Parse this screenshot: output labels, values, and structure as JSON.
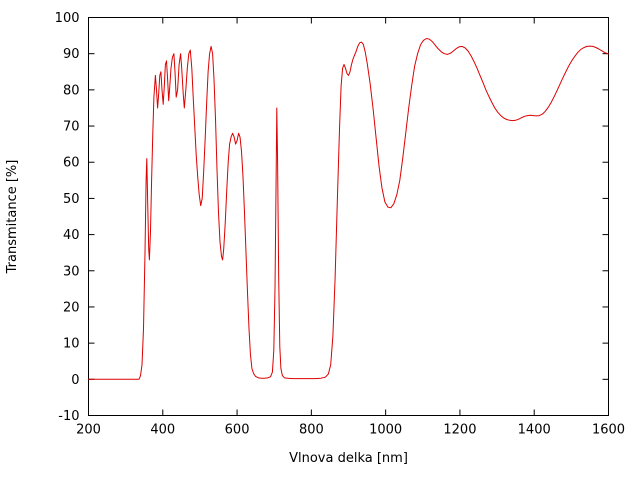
{
  "chart_data": {
    "type": "line",
    "title": "",
    "xlabel": "Vlnova delka [nm]",
    "ylabel": "Transmitance [%]",
    "xlim": [
      200,
      1600
    ],
    "ylim": [
      -10,
      100
    ],
    "x_ticks": [
      200,
      400,
      600,
      800,
      1000,
      1200,
      1400,
      1600
    ],
    "y_ticks": [
      -10,
      0,
      10,
      20,
      30,
      40,
      50,
      60,
      70,
      80,
      90,
      100
    ],
    "grid": false,
    "legend": "none",
    "line_color": "#dd0000",
    "frame_color": "#000000",
    "background_color": "#ffffff",
    "points": [
      [
        200,
        0
      ],
      [
        250,
        0
      ],
      [
        300,
        0
      ],
      [
        320,
        0
      ],
      [
        330,
        0
      ],
      [
        336,
        0
      ],
      [
        340,
        1
      ],
      [
        344,
        4
      ],
      [
        348,
        14
      ],
      [
        352,
        35
      ],
      [
        355,
        55
      ],
      [
        357,
        61
      ],
      [
        359,
        50
      ],
      [
        362,
        36
      ],
      [
        364,
        33
      ],
      [
        367,
        41
      ],
      [
        370,
        55
      ],
      [
        373,
        68
      ],
      [
        376,
        78
      ],
      [
        380,
        84
      ],
      [
        383,
        80
      ],
      [
        386,
        75
      ],
      [
        389,
        79
      ],
      [
        392,
        84
      ],
      [
        395,
        85
      ],
      [
        398,
        80
      ],
      [
        401,
        76
      ],
      [
        404,
        81
      ],
      [
        407,
        87
      ],
      [
        410,
        88
      ],
      [
        413,
        83
      ],
      [
        416,
        77
      ],
      [
        419,
        81
      ],
      [
        422,
        86
      ],
      [
        426,
        89
      ],
      [
        430,
        90
      ],
      [
        433,
        85
      ],
      [
        436,
        78
      ],
      [
        440,
        80
      ],
      [
        444,
        87
      ],
      [
        448,
        90
      ],
      [
        451,
        86
      ],
      [
        455,
        79
      ],
      [
        458,
        75
      ],
      [
        462,
        80
      ],
      [
        466,
        86
      ],
      [
        470,
        90
      ],
      [
        474,
        91
      ],
      [
        478,
        86
      ],
      [
        482,
        78
      ],
      [
        486,
        70
      ],
      [
        490,
        62
      ],
      [
        494,
        56
      ],
      [
        498,
        51
      ],
      [
        502,
        48
      ],
      [
        506,
        50
      ],
      [
        510,
        57
      ],
      [
        514,
        66
      ],
      [
        518,
        76
      ],
      [
        522,
        85
      ],
      [
        526,
        90
      ],
      [
        530,
        92
      ],
      [
        534,
        90
      ],
      [
        538,
        83
      ],
      [
        542,
        72
      ],
      [
        546,
        58
      ],
      [
        550,
        46
      ],
      [
        554,
        38
      ],
      [
        558,
        34
      ],
      [
        561,
        33
      ],
      [
        564,
        36
      ],
      [
        568,
        43
      ],
      [
        572,
        52
      ],
      [
        576,
        60
      ],
      [
        580,
        65
      ],
      [
        584,
        67
      ],
      [
        588,
        68
      ],
      [
        592,
        67
      ],
      [
        596,
        65
      ],
      [
        600,
        66
      ],
      [
        604,
        68
      ],
      [
        608,
        67
      ],
      [
        612,
        63
      ],
      [
        616,
        56
      ],
      [
        620,
        46
      ],
      [
        624,
        35
      ],
      [
        628,
        24
      ],
      [
        632,
        14
      ],
      [
        636,
        7
      ],
      [
        640,
        3
      ],
      [
        645,
        1.5
      ],
      [
        650,
        0.8
      ],
      [
        658,
        0.4
      ],
      [
        666,
        0.3
      ],
      [
        674,
        0.3
      ],
      [
        682,
        0.4
      ],
      [
        690,
        0.7
      ],
      [
        695,
        2
      ],
      [
        699,
        8
      ],
      [
        702,
        25
      ],
      [
        705,
        55
      ],
      [
        707,
        75
      ],
      [
        709,
        60
      ],
      [
        712,
        28
      ],
      [
        715,
        9
      ],
      [
        718,
        3
      ],
      [
        722,
        1
      ],
      [
        728,
        0.4
      ],
      [
        736,
        0.3
      ],
      [
        750,
        0.2
      ],
      [
        770,
        0.2
      ],
      [
        790,
        0.2
      ],
      [
        810,
        0.2
      ],
      [
        826,
        0.3
      ],
      [
        838,
        0.6
      ],
      [
        846,
        1.5
      ],
      [
        852,
        4
      ],
      [
        858,
        12
      ],
      [
        864,
        28
      ],
      [
        870,
        50
      ],
      [
        876,
        70
      ],
      [
        880,
        81
      ],
      [
        884,
        86
      ],
      [
        888,
        87
      ],
      [
        892,
        86
      ],
      [
        896,
        84.5
      ],
      [
        900,
        84
      ],
      [
        904,
        85
      ],
      [
        908,
        87
      ],
      [
        912,
        88.5
      ],
      [
        916,
        89.5
      ],
      [
        920,
        90.5
      ],
      [
        925,
        92
      ],
      [
        930,
        93
      ],
      [
        935,
        93.2
      ],
      [
        940,
        92.5
      ],
      [
        945,
        90.5
      ],
      [
        950,
        87.5
      ],
      [
        958,
        82
      ],
      [
        966,
        75
      ],
      [
        974,
        67
      ],
      [
        982,
        59
      ],
      [
        990,
        53
      ],
      [
        998,
        49
      ],
      [
        1006,
        47.6
      ],
      [
        1014,
        47.4
      ],
      [
        1022,
        48.5
      ],
      [
        1030,
        51
      ],
      [
        1038,
        55
      ],
      [
        1046,
        61
      ],
      [
        1054,
        68
      ],
      [
        1062,
        75
      ],
      [
        1070,
        81
      ],
      [
        1078,
        86.5
      ],
      [
        1086,
        90
      ],
      [
        1094,
        92.5
      ],
      [
        1102,
        93.7
      ],
      [
        1110,
        94.2
      ],
      [
        1118,
        94
      ],
      [
        1126,
        93.3
      ],
      [
        1134,
        92.3
      ],
      [
        1142,
        91.3
      ],
      [
        1150,
        90.5
      ],
      [
        1158,
        90
      ],
      [
        1166,
        89.8
      ],
      [
        1174,
        90.1
      ],
      [
        1182,
        90.7
      ],
      [
        1190,
        91.4
      ],
      [
        1198,
        91.9
      ],
      [
        1206,
        92
      ],
      [
        1214,
        91.6
      ],
      [
        1222,
        90.7
      ],
      [
        1230,
        89.4
      ],
      [
        1238,
        87.8
      ],
      [
        1246,
        86
      ],
      [
        1254,
        84
      ],
      [
        1262,
        82
      ],
      [
        1270,
        80
      ],
      [
        1278,
        78.2
      ],
      [
        1286,
        76.5
      ],
      [
        1294,
        75
      ],
      [
        1302,
        73.8
      ],
      [
        1310,
        72.9
      ],
      [
        1318,
        72.2
      ],
      [
        1326,
        71.8
      ],
      [
        1334,
        71.6
      ],
      [
        1342,
        71.5
      ],
      [
        1350,
        71.6
      ],
      [
        1358,
        71.9
      ],
      [
        1366,
        72.3
      ],
      [
        1374,
        72.7
      ],
      [
        1382,
        72.9
      ],
      [
        1390,
        73
      ],
      [
        1398,
        72.9
      ],
      [
        1406,
        72.8
      ],
      [
        1414,
        72.9
      ],
      [
        1422,
        73.3
      ],
      [
        1430,
        74.1
      ],
      [
        1438,
        75.2
      ],
      [
        1446,
        76.6
      ],
      [
        1454,
        78.2
      ],
      [
        1462,
        79.9
      ],
      [
        1470,
        81.7
      ],
      [
        1478,
        83.5
      ],
      [
        1486,
        85.2
      ],
      [
        1494,
        86.8
      ],
      [
        1502,
        88.2
      ],
      [
        1510,
        89.4
      ],
      [
        1518,
        90.4
      ],
      [
        1526,
        91.2
      ],
      [
        1534,
        91.7
      ],
      [
        1542,
        92
      ],
      [
        1550,
        92.1
      ],
      [
        1558,
        92
      ],
      [
        1566,
        91.7
      ],
      [
        1574,
        91.3
      ],
      [
        1582,
        90.8
      ],
      [
        1590,
        90.3
      ],
      [
        1600,
        89.9
      ]
    ]
  }
}
